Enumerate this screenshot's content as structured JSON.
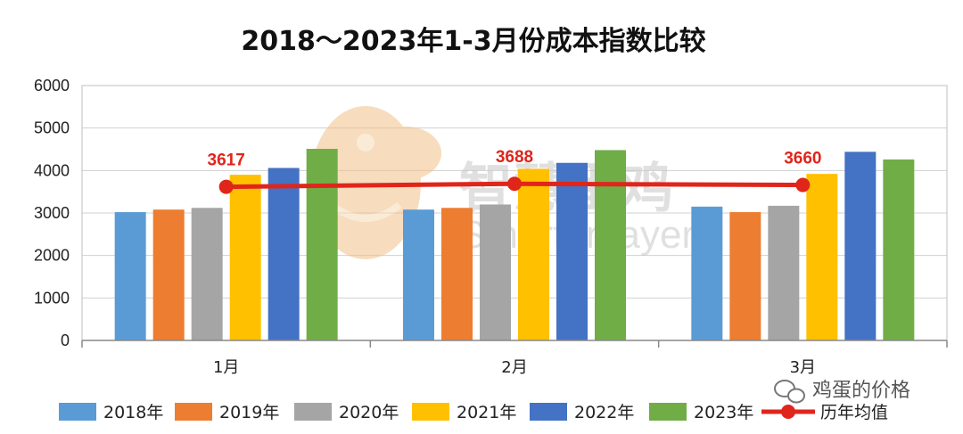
{
  "chart_data": {
    "type": "bar",
    "title": "2018～2023年1-3月份成本指数比较",
    "categories": [
      "1月",
      "2月",
      "3月"
    ],
    "ylim": [
      0,
      6000
    ],
    "yticks": [
      0,
      1000,
      2000,
      3000,
      4000,
      5000,
      6000
    ],
    "grid": true,
    "legend_placement": "bottom",
    "series": [
      {
        "name": "2018年",
        "color": "#5b9bd5",
        "values": [
          3020,
          3080,
          3150
        ]
      },
      {
        "name": "2019年",
        "color": "#ed7d31",
        "values": [
          3080,
          3120,
          3020
        ]
      },
      {
        "name": "2020年",
        "color": "#a5a5a5",
        "values": [
          3120,
          3200,
          3170
        ]
      },
      {
        "name": "2021年",
        "color": "#ffc000",
        "values": [
          3900,
          4040,
          3920
        ]
      },
      {
        "name": "2022年",
        "color": "#4472c4",
        "values": [
          4060,
          4180,
          4440
        ]
      },
      {
        "name": "2023年",
        "color": "#70ad47",
        "values": [
          4510,
          4480,
          4260
        ]
      }
    ],
    "average": {
      "name": "历年均值",
      "color": "#e0251b",
      "values": [
        3617,
        3688,
        3660
      ],
      "labels": [
        "3617",
        "3688",
        "3660"
      ]
    }
  },
  "watermark": {
    "cn": "智慧蛋鸡",
    "en": "Smarter layer"
  },
  "wechat_tag": "鸡蛋的价格"
}
